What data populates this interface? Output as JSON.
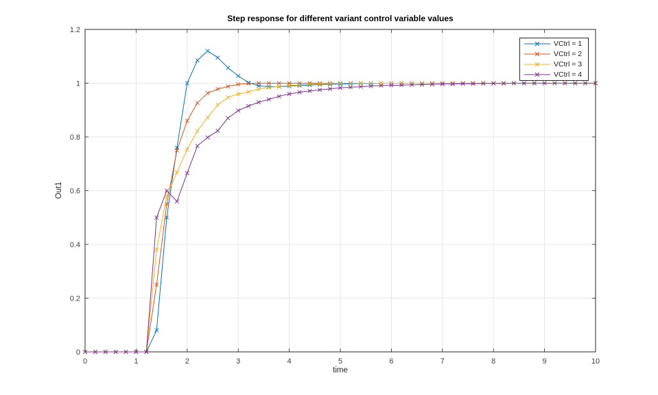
{
  "figure": {
    "background": "#ffffff",
    "axes_color": "#262626",
    "grid_color": "#e6e6e6",
    "tick_label_color": "#404040"
  },
  "chart_data": {
    "type": "line",
    "title": "Step response for different variant control variable values",
    "xlabel": "time",
    "ylabel": "Out1",
    "xlim": [
      0,
      10
    ],
    "ylim": [
      0,
      1.2
    ],
    "grid": true,
    "box": true,
    "tick_dir": "in",
    "legend_position": "northeast-inside",
    "marker": "x",
    "xticks": [
      0,
      1,
      2,
      3,
      4,
      5,
      6,
      7,
      8,
      9,
      10
    ],
    "xtick_labels": [
      "0",
      "1",
      "2",
      "3",
      "4",
      "5",
      "6",
      "7",
      "8",
      "9",
      "10"
    ],
    "yticks": [
      0,
      0.2,
      0.4,
      0.6,
      0.8,
      1,
      1.2
    ],
    "ytick_labels": [
      "0",
      "0.2",
      "0.4",
      "0.6",
      "0.8",
      "1",
      "1.2"
    ],
    "x": [
      0,
      0.2,
      0.4,
      0.6,
      0.8,
      1,
      1.2,
      1.4,
      1.6,
      1.8,
      2,
      2.2,
      2.4,
      2.6,
      2.8,
      3,
      3.2,
      3.4,
      3.6,
      3.8,
      4,
      4.2,
      4.4,
      4.6,
      4.8,
      5,
      5.2,
      5.4,
      5.6,
      5.8,
      6,
      6.2,
      6.4,
      6.6,
      6.8,
      7,
      7.2,
      7.4,
      7.6,
      7.8,
      8,
      8.2,
      8.4,
      8.6,
      8.8,
      9,
      9.2,
      9.4,
      9.6,
      9.8,
      10
    ],
    "series": [
      {
        "name": "VCtrl = 1",
        "color": "#0072BD",
        "values": [
          0,
          0,
          0,
          0,
          0,
          0,
          0,
          0.08,
          0.5,
          0.76,
          1.0,
          1.085,
          1.12,
          1.095,
          1.057,
          1.027,
          1.002,
          0.99,
          0.987,
          0.987,
          0.989,
          0.991,
          0.993,
          0.995,
          0.996,
          0.997,
          0.998,
          0.999,
          0.999,
          1,
          1,
          1,
          1,
          1,
          1,
          1,
          1,
          1,
          1,
          1,
          1,
          1,
          1,
          1,
          1,
          1,
          1,
          1,
          1,
          1,
          1
        ]
      },
      {
        "name": "VCtrl = 2",
        "color": "#D95319",
        "values": [
          0,
          0,
          0,
          0,
          0,
          0,
          0,
          0.25,
          0.55,
          0.75,
          0.86,
          0.927,
          0.963,
          0.978,
          0.988,
          0.996,
          0.999,
          1,
          1,
          1,
          1,
          1,
          1,
          1,
          1,
          1,
          1,
          1,
          1,
          1,
          1,
          1,
          1,
          1,
          1,
          1,
          1,
          1,
          1,
          1,
          1,
          1,
          1,
          1,
          1,
          1,
          1,
          1,
          1,
          1,
          1
        ]
      },
      {
        "name": "VCtrl = 3",
        "color": "#EDB120",
        "values": [
          0,
          0,
          0,
          0,
          0,
          0,
          0,
          0.38,
          0.58,
          0.668,
          0.754,
          0.823,
          0.872,
          0.92,
          0.947,
          0.96,
          0.968,
          0.978,
          0.984,
          0.988,
          0.991,
          0.994,
          0.996,
          0.998,
          0.999,
          1,
          1,
          1,
          1,
          1,
          1,
          1,
          1,
          1,
          1,
          1,
          1,
          1,
          1,
          1,
          1,
          1,
          1,
          1,
          1,
          1,
          1,
          1,
          1,
          1,
          1
        ]
      },
      {
        "name": "VCtrl = 4",
        "color": "#7E2F8E",
        "values": [
          0,
          0,
          0,
          0,
          0,
          0,
          0,
          0.5,
          0.6,
          0.56,
          0.665,
          0.767,
          0.798,
          0.823,
          0.87,
          0.898,
          0.915,
          0.929,
          0.94,
          0.951,
          0.96,
          0.966,
          0.971,
          0.975,
          0.979,
          0.983,
          0.985,
          0.987,
          0.989,
          0.991,
          0.992,
          0.993,
          0.994,
          0.995,
          0.996,
          0.997,
          0.997,
          0.998,
          0.998,
          0.999,
          0.999,
          0.999,
          1,
          1,
          1,
          1,
          1,
          1,
          1,
          1,
          1
        ]
      }
    ]
  },
  "legend": {
    "entries": [
      {
        "label": "VCtrl = 1"
      },
      {
        "label": "VCtrl = 2"
      },
      {
        "label": "VCtrl = 3"
      },
      {
        "label": "VCtrl = 4"
      }
    ]
  }
}
